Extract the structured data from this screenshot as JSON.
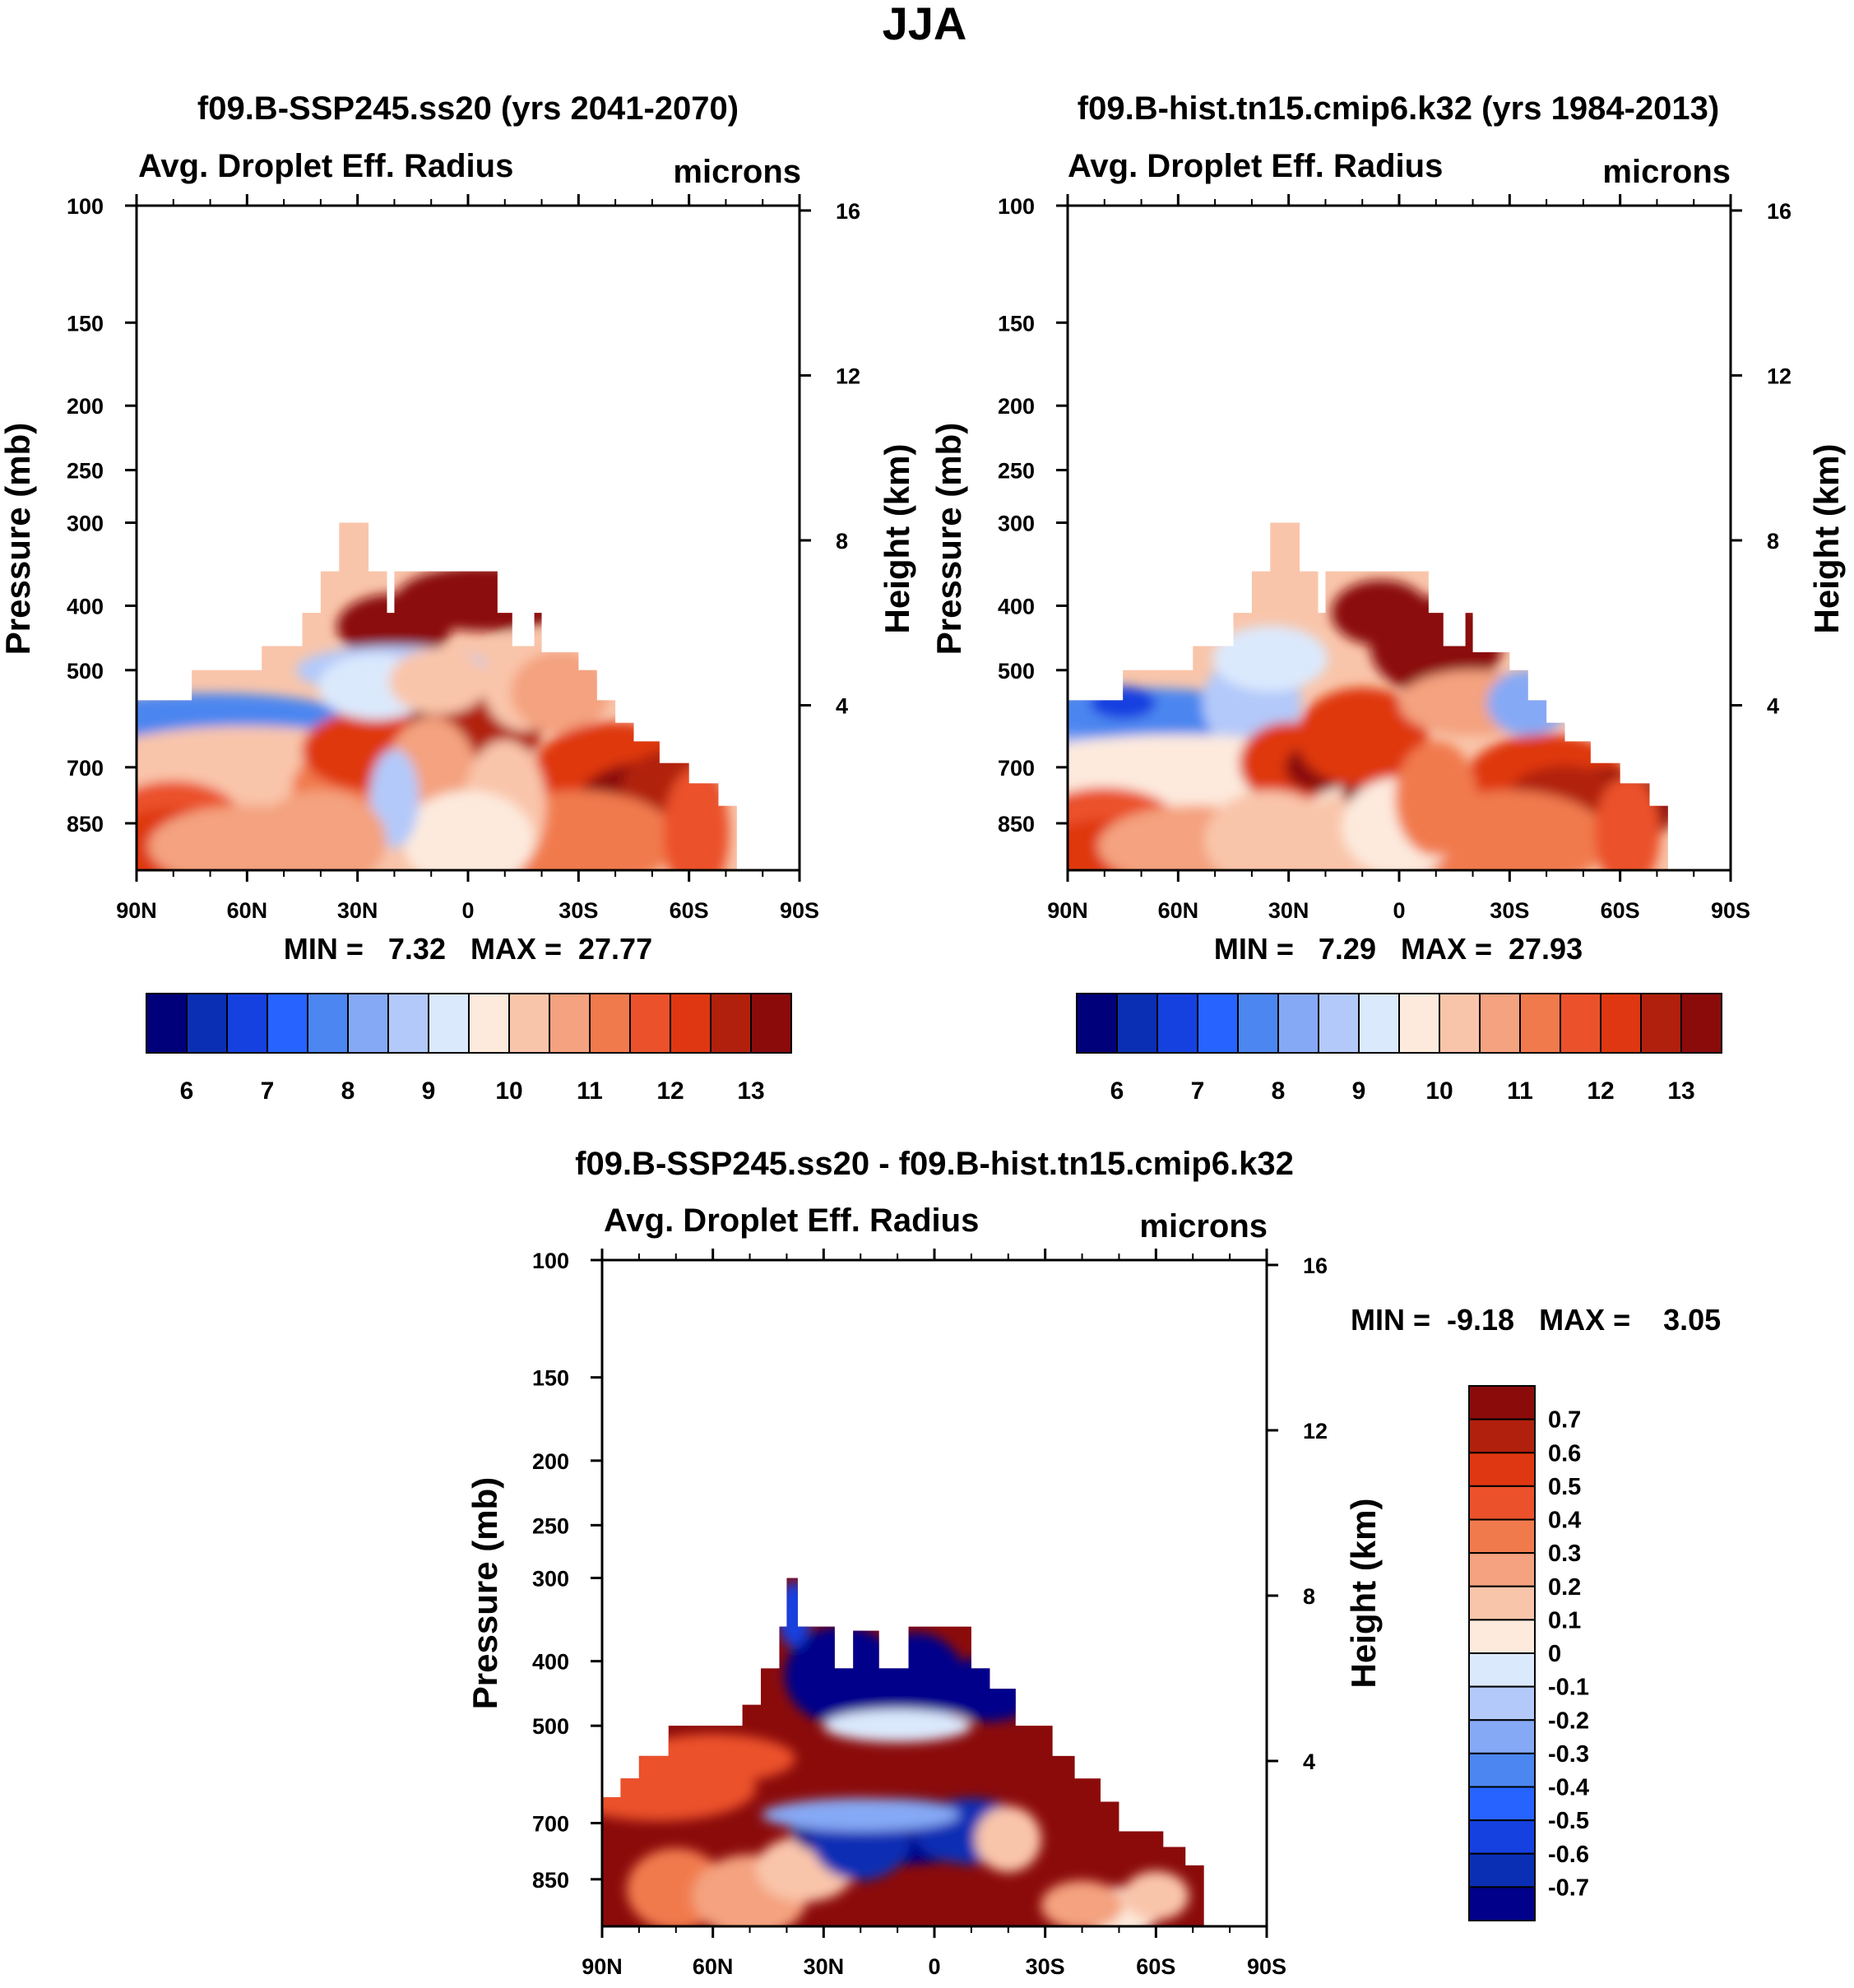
{
  "page_title": "JJA",
  "colors": {
    "seq": [
      "#00007a",
      "#0a2fb4",
      "#1541e0",
      "#2663ff",
      "#4c86f0",
      "#86a9f5",
      "#b3c9fa",
      "#dbe9fd",
      "#fdeadd",
      "#f9c5aa",
      "#f4a27f",
      "#f17a4d",
      "#eb512b",
      "#df3711",
      "#b1200d",
      "#8b0b0b"
    ],
    "diff": [
      "#00008b",
      "#0a2fb4",
      "#1541e0",
      "#2663ff",
      "#4c86f0",
      "#86a9f5",
      "#b3c9fa",
      "#dbe9fd",
      "#fdeadd",
      "#f9c5aa",
      "#f4a27f",
      "#f17a4d",
      "#eb512b",
      "#df3711",
      "#b1200d",
      "#8b0b0b"
    ]
  },
  "chart_data": [
    {
      "type": "heatmap",
      "panel_title": "f09.B-SSP245.ss20 (yrs 2041-2070)",
      "variable": "Avg. Droplet Eff. Radius",
      "units": "microns",
      "ylabel_left": "Pressure (mb)",
      "ylabel_right": "Height (km)",
      "x_ticklabels": [
        "90N",
        "60N",
        "30N",
        "0",
        "30S",
        "60S",
        "90S"
      ],
      "x_values": [
        90,
        60,
        30,
        0,
        -30,
        -60,
        -90
      ],
      "y_ticks": [
        100,
        150,
        200,
        250,
        300,
        400,
        500,
        700,
        850
      ],
      "y_ticklabels": [
        "100",
        "150",
        "200",
        "250",
        "300",
        "400",
        "500",
        "700",
        "850"
      ],
      "ylim": [
        100,
        1000
      ],
      "height_ticks": [
        16,
        12,
        8,
        4
      ],
      "height_ticklabels": [
        "16",
        "12",
        "8",
        "4"
      ],
      "stats_text": "MIN =   7.32   MAX =  27.77",
      "min": 7.32,
      "max": 27.77,
      "colorbar_ticklabels": [
        "6",
        "7",
        "8",
        "9",
        "10",
        "11",
        "12",
        "13"
      ],
      "colorbar_levels": [
        5.5,
        6,
        6.5,
        7,
        7.5,
        8,
        8.5,
        9,
        9.5,
        10,
        10.5,
        11,
        11.5,
        12,
        12.5,
        13,
        13.5
      ]
    },
    {
      "type": "heatmap",
      "panel_title": "f09.B-hist.tn15.cmip6.k32 (yrs 1984-2013)",
      "variable": "Avg. Droplet Eff. Radius",
      "units": "microns",
      "ylabel_left": "Pressure (mb)",
      "ylabel_right": "Height (km)",
      "x_ticklabels": [
        "90N",
        "60N",
        "30N",
        "0",
        "30S",
        "60S",
        "90S"
      ],
      "x_values": [
        90,
        60,
        30,
        0,
        -30,
        -60,
        -90
      ],
      "y_ticks": [
        100,
        150,
        200,
        250,
        300,
        400,
        500,
        700,
        850
      ],
      "y_ticklabels": [
        "100",
        "150",
        "200",
        "250",
        "300",
        "400",
        "500",
        "700",
        "850"
      ],
      "ylim": [
        100,
        1000
      ],
      "height_ticks": [
        16,
        12,
        8,
        4
      ],
      "height_ticklabels": [
        "16",
        "12",
        "8",
        "4"
      ],
      "stats_text": "MIN =   7.29   MAX =  27.93",
      "min": 7.29,
      "max": 27.93,
      "colorbar_ticklabels": [
        "6",
        "7",
        "8",
        "9",
        "10",
        "11",
        "12",
        "13"
      ],
      "colorbar_levels": [
        5.5,
        6,
        6.5,
        7,
        7.5,
        8,
        8.5,
        9,
        9.5,
        10,
        10.5,
        11,
        11.5,
        12,
        12.5,
        13,
        13.5
      ]
    },
    {
      "type": "heatmap",
      "panel_title": "f09.B-SSP245.ss20 - f09.B-hist.tn15.cmip6.k32",
      "variable": "Avg. Droplet Eff. Radius",
      "units": "microns",
      "ylabel_left": "Pressure (mb)",
      "ylabel_right": "Height (km)",
      "x_ticklabels": [
        "90N",
        "60N",
        "30N",
        "0",
        "30S",
        "60S",
        "90S"
      ],
      "x_values": [
        90,
        60,
        30,
        0,
        -30,
        -60,
        -90
      ],
      "y_ticks": [
        100,
        150,
        200,
        250,
        300,
        400,
        500,
        700,
        850
      ],
      "y_ticklabels": [
        "100",
        "150",
        "200",
        "250",
        "300",
        "400",
        "500",
        "700",
        "850"
      ],
      "ylim": [
        100,
        1000
      ],
      "height_ticks": [
        16,
        12,
        8,
        4
      ],
      "height_ticklabels": [
        "16",
        "12",
        "8",
        "4"
      ],
      "stats_text": "MIN =  -9.18   MAX =    3.05",
      "min": -9.18,
      "max": 3.05,
      "colorbar_ticklabels": [
        "0.7",
        "0.6",
        "0.5",
        "0.4",
        "0.3",
        "0.2",
        "0.1",
        "0",
        "-0.1",
        "-0.2",
        "-0.3",
        "-0.4",
        "-0.5",
        "-0.6",
        "-0.7"
      ],
      "colorbar_levels": [
        -0.7,
        -0.6,
        -0.5,
        -0.4,
        -0.3,
        -0.2,
        -0.1,
        0,
        0.1,
        0.2,
        0.3,
        0.4,
        0.5,
        0.6,
        0.7
      ]
    }
  ]
}
